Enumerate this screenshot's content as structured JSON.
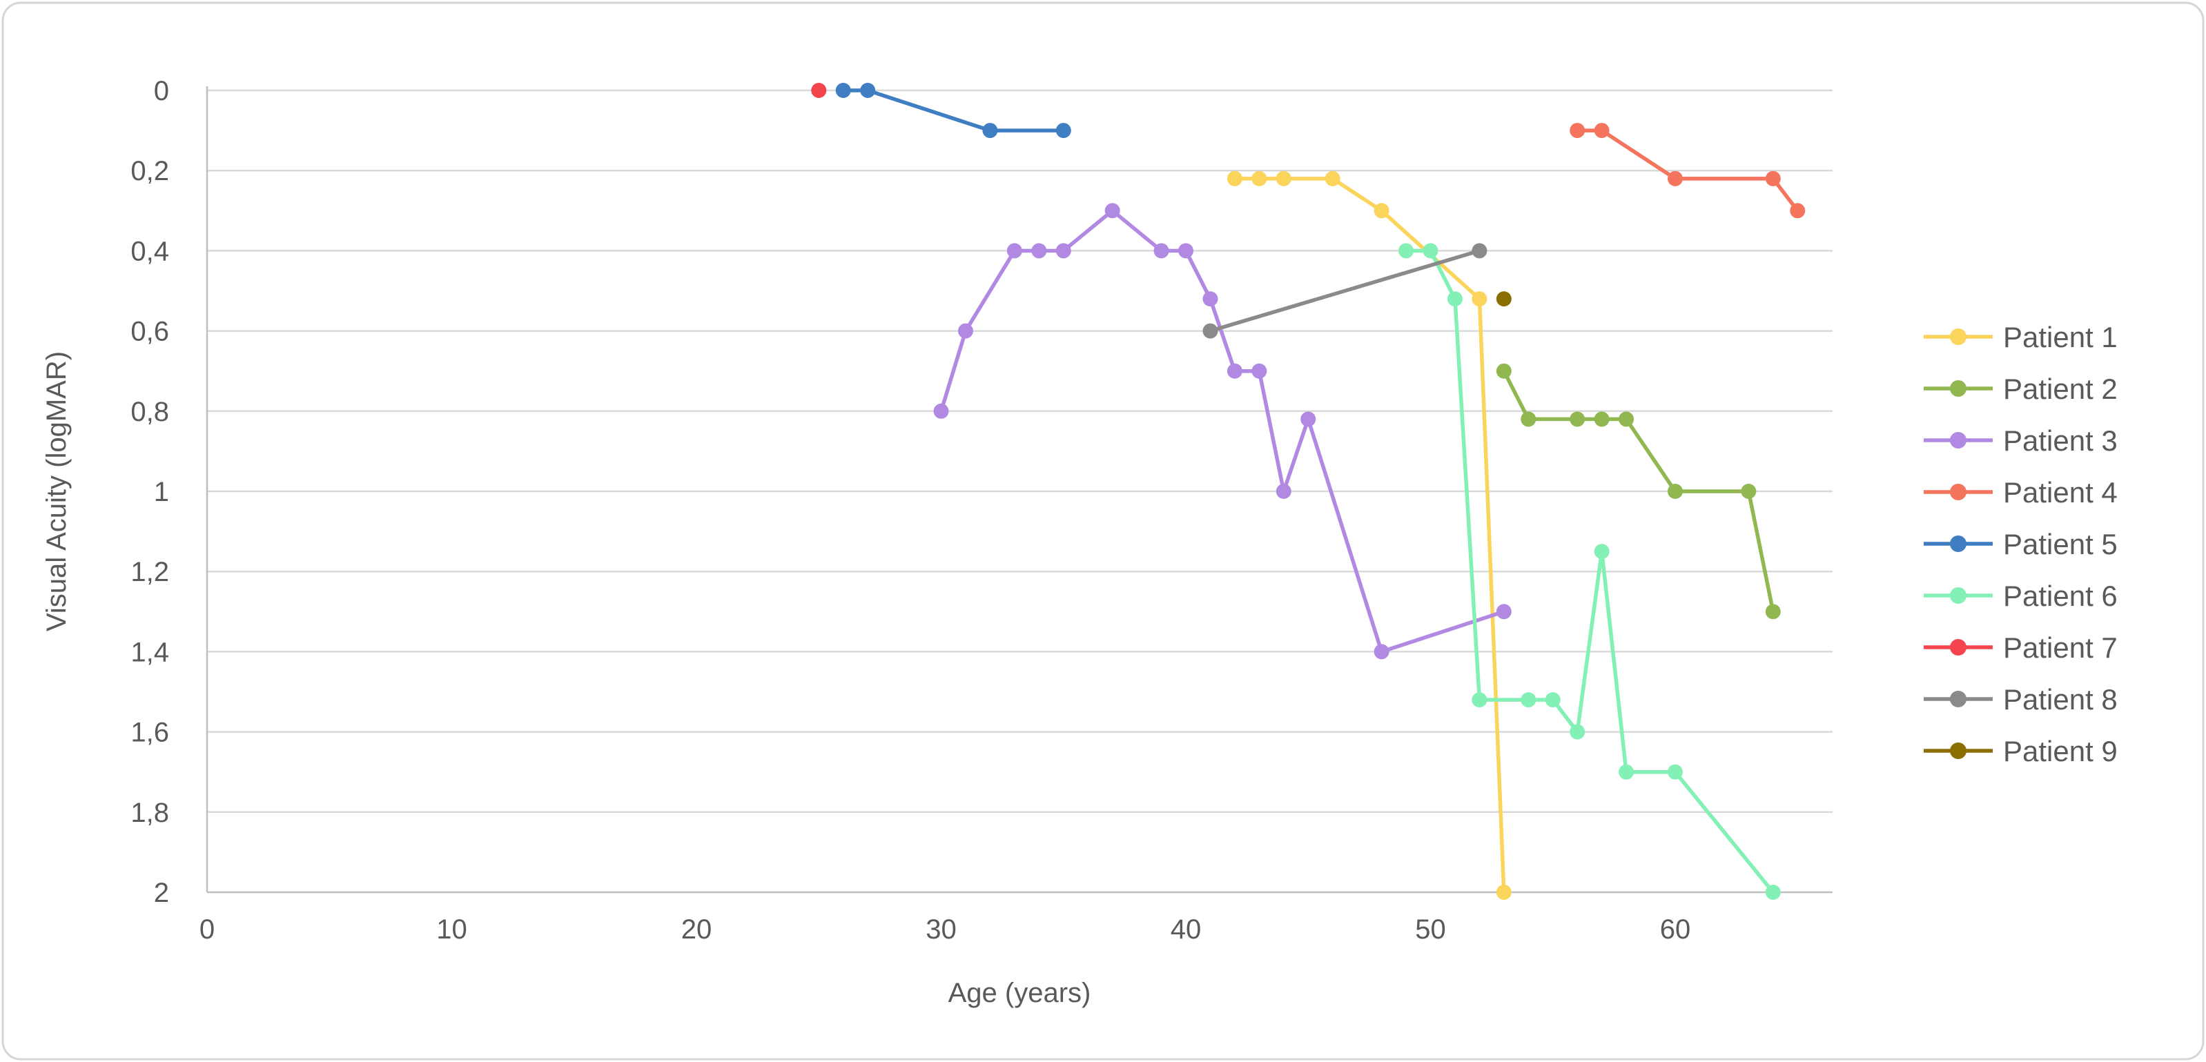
{
  "chart_data": {
    "type": "line",
    "title": "",
    "xlabel": "Age (years)",
    "ylabel": "Visual Acuity (logMAR)",
    "x_axis": {
      "min": 0,
      "max": 66.5,
      "tick_values": [
        0,
        10,
        20,
        30,
        40,
        50,
        60
      ],
      "tick_labels": [
        "0",
        "10",
        "20",
        "30",
        "40",
        "50",
        "60"
      ]
    },
    "y_axis": {
      "min": 0,
      "max": 2,
      "inverted": true,
      "tick_values": [
        0,
        0.2,
        0.4,
        0.6,
        0.8,
        1,
        1.2,
        1.4,
        1.6,
        1.8,
        2
      ],
      "tick_labels": [
        "0",
        "0,2",
        "0,4",
        "0,6",
        "0,8",
        "1",
        "1,2",
        "1,4",
        "1,6",
        "1,8",
        "2"
      ],
      "grid": true
    },
    "legend_position": "right",
    "colors": {
      "grid": "#D9D9D9",
      "axis": "#BFBFBF",
      "text": "#595959",
      "frame": "#D6D6D6"
    },
    "series": [
      {
        "name": "Patient 1",
        "color": "#FBD45C",
        "points": [
          [
            42,
            0.22
          ],
          [
            43,
            0.22
          ],
          [
            44,
            0.22
          ],
          [
            46,
            0.22
          ],
          [
            48,
            0.3
          ],
          [
            52,
            0.52
          ],
          [
            53,
            2.0
          ]
        ]
      },
      {
        "name": "Patient 2",
        "color": "#91B750",
        "points": [
          [
            53,
            0.7
          ],
          [
            54,
            0.82
          ],
          [
            56,
            0.82
          ],
          [
            57,
            0.82
          ],
          [
            58,
            0.82
          ],
          [
            60,
            1.0
          ],
          [
            63,
            1.0
          ],
          [
            64,
            1.3
          ]
        ]
      },
      {
        "name": "Patient 3",
        "color": "#B289E2",
        "points": [
          [
            30,
            0.8
          ],
          [
            31,
            0.6
          ],
          [
            33,
            0.4
          ],
          [
            34,
            0.4
          ],
          [
            35,
            0.4
          ],
          [
            37,
            0.3
          ],
          [
            39,
            0.4
          ],
          [
            40,
            0.4
          ],
          [
            41,
            0.52
          ],
          [
            42,
            0.7
          ],
          [
            43,
            0.7
          ],
          [
            44,
            1.0
          ],
          [
            45,
            0.82
          ],
          [
            48,
            1.4
          ],
          [
            53,
            1.3
          ]
        ]
      },
      {
        "name": "Patient 4",
        "color": "#F4745E",
        "points": [
          [
            56,
            0.1
          ],
          [
            57,
            0.1
          ],
          [
            60,
            0.22
          ],
          [
            64,
            0.22
          ],
          [
            65,
            0.3
          ]
        ]
      },
      {
        "name": "Patient 5",
        "color": "#3F7EC3",
        "points": [
          [
            26,
            0
          ],
          [
            27,
            0
          ],
          [
            32,
            0.1
          ],
          [
            35,
            0.1
          ]
        ]
      },
      {
        "name": "Patient 6",
        "color": "#83F0B6",
        "points": [
          [
            49,
            0.4
          ],
          [
            50,
            0.4
          ],
          [
            51,
            0.52
          ],
          [
            52,
            1.52
          ],
          [
            54,
            1.52
          ],
          [
            55,
            1.52
          ],
          [
            56,
            1.6
          ],
          [
            57,
            1.15
          ],
          [
            58,
            1.7
          ],
          [
            60,
            1.7
          ],
          [
            64,
            2.0
          ]
        ]
      },
      {
        "name": "Patient 7",
        "color": "#F4454E",
        "points": [
          [
            25,
            0
          ]
        ]
      },
      {
        "name": "Patient 8",
        "color": "#8A8A8A",
        "points": [
          [
            41,
            0.6
          ],
          [
            52,
            0.4
          ]
        ]
      },
      {
        "name": "Patient 9",
        "color": "#8A6F00",
        "points": [
          [
            53,
            0.52
          ]
        ]
      }
    ]
  }
}
